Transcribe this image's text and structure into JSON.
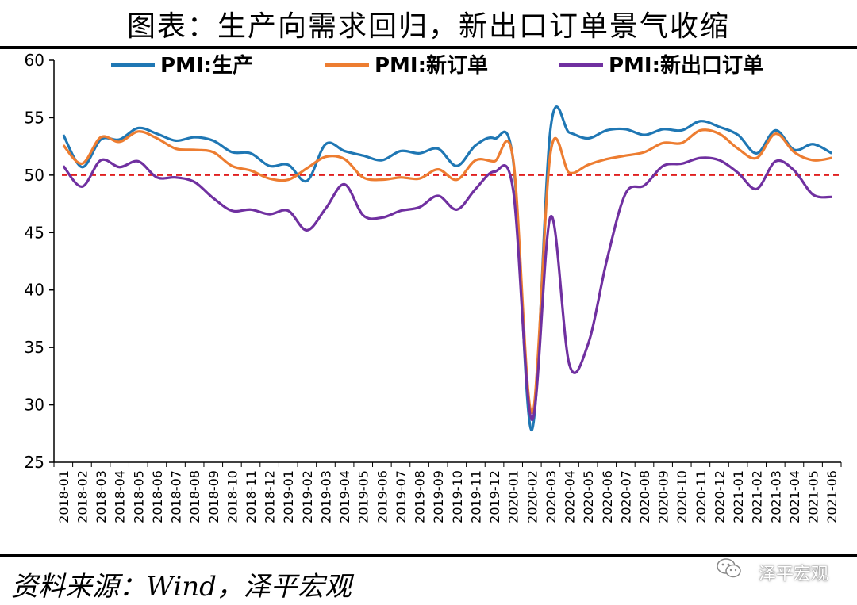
{
  "title": "图表：生产向需求回归，新出口订单景气收缩",
  "source": "资料来源：Wind，泽平宏观",
  "watermark": "泽平宏观",
  "chart_data": {
    "type": "line",
    "ylim": [
      25,
      60
    ],
    "yticks": [
      25,
      30,
      35,
      40,
      45,
      50,
      55,
      60
    ],
    "reference_line": 50,
    "reference_color": "#e02020",
    "legend_position": "top",
    "categories": [
      "2018-01",
      "2018-02",
      "2018-03",
      "2018-04",
      "2018-05",
      "2018-06",
      "2018-07",
      "2018-08",
      "2018-09",
      "2018-10",
      "2018-11",
      "2018-12",
      "2019-01",
      "2019-02",
      "2019-03",
      "2019-04",
      "2019-05",
      "2019-06",
      "2019-07",
      "2019-08",
      "2019-09",
      "2019-10",
      "2019-11",
      "2019-12",
      "2020-01",
      "2020-02",
      "2020-03",
      "2020-04",
      "2020-05",
      "2020-06",
      "2020-07",
      "2020-08",
      "2020-09",
      "2020-10",
      "2020-11",
      "2020-12",
      "2021-01",
      "2021-02",
      "2021-03",
      "2021-04",
      "2021-05",
      "2021-06"
    ],
    "series": [
      {
        "name": "PMI:生产",
        "color": "#1f77b4",
        "values": [
          53.5,
          50.7,
          53.1,
          53.1,
          54.1,
          53.6,
          53.0,
          53.3,
          53.0,
          52.0,
          51.9,
          50.8,
          50.9,
          49.5,
          52.7,
          52.1,
          51.7,
          51.3,
          52.1,
          51.9,
          52.3,
          50.8,
          52.6,
          53.2,
          51.3,
          27.8,
          54.1,
          53.7,
          53.2,
          53.9,
          54.0,
          53.5,
          54.0,
          53.9,
          54.7,
          54.2,
          53.5,
          51.9,
          53.9,
          52.2,
          52.7,
          51.9
        ]
      },
      {
        "name": "PMI:新订单",
        "color": "#ed7d31",
        "values": [
          52.6,
          51.0,
          53.3,
          52.9,
          53.8,
          53.2,
          52.3,
          52.2,
          52.0,
          50.8,
          50.4,
          49.7,
          49.6,
          50.6,
          51.6,
          51.4,
          49.8,
          49.6,
          49.8,
          49.7,
          50.5,
          49.6,
          51.3,
          51.2,
          51.4,
          29.3,
          52.0,
          50.2,
          50.9,
          51.4,
          51.7,
          52.0,
          52.8,
          52.8,
          53.9,
          53.6,
          52.3,
          51.5,
          53.6,
          52.0,
          51.3,
          51.5
        ]
      },
      {
        "name": "PMI:新出口订单",
        "color": "#7030a0",
        "values": [
          50.8,
          49.0,
          51.3,
          50.7,
          51.2,
          49.8,
          49.8,
          49.4,
          48.0,
          46.9,
          47.0,
          46.6,
          46.9,
          45.2,
          47.1,
          49.2,
          46.5,
          46.3,
          46.9,
          47.2,
          48.2,
          47.0,
          48.8,
          50.3,
          48.7,
          28.7,
          46.4,
          33.5,
          35.3,
          42.6,
          48.4,
          49.1,
          50.8,
          51.0,
          51.5,
          51.3,
          50.2,
          48.8,
          51.2,
          50.4,
          48.3,
          48.1
        ]
      }
    ]
  }
}
